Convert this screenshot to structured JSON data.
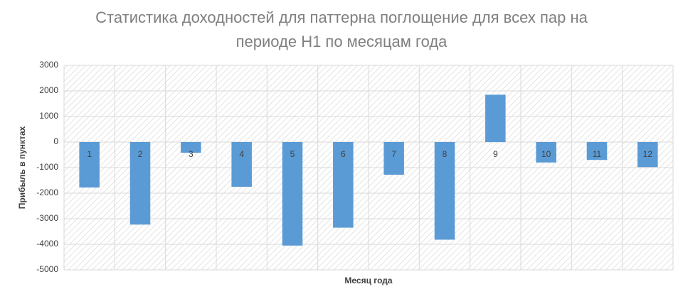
{
  "chart_data": {
    "type": "bar",
    "title": [
      "Статистика доходностей для паттерна поглощение для всех пар на",
      "периоде H1 по месяцам года"
    ],
    "x_label": "Месяц года",
    "y_label": "Прибыль в пунктах",
    "categories": [
      "1",
      "2",
      "3",
      "4",
      "5",
      "6",
      "7",
      "8",
      "9",
      "10",
      "11",
      "12"
    ],
    "values": [
      -1780,
      -3230,
      -420,
      -1750,
      -4050,
      -3350,
      -1280,
      -3820,
      1850,
      -800,
      -700,
      -980
    ],
    "color": "#5b9bd5",
    "ylim": [
      -5000,
      3000
    ],
    "yticks": [
      -5000,
      -4000,
      -3000,
      -2000,
      -1000,
      0,
      1000,
      2000,
      3000
    ],
    "grid": true
  }
}
